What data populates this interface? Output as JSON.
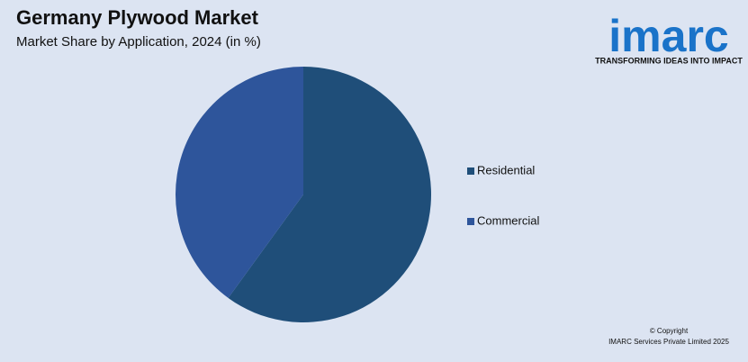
{
  "chart_data": {
    "type": "pie",
    "title": "Germany Plywood Market",
    "subtitle": "Market Share by Application, 2024 (in %)",
    "categories": [
      "Residential",
      "Commercial"
    ],
    "values": [
      60,
      40
    ],
    "colors": [
      "#1f4e79",
      "#2e559b"
    ],
    "legend": "right"
  },
  "brand": {
    "name": "imarc",
    "tagline": "TRANSFORMING IDEAS INTO IMPACT"
  },
  "copyright": [
    "© Copyright",
    "IMARC Services Private Limited 2025"
  ]
}
